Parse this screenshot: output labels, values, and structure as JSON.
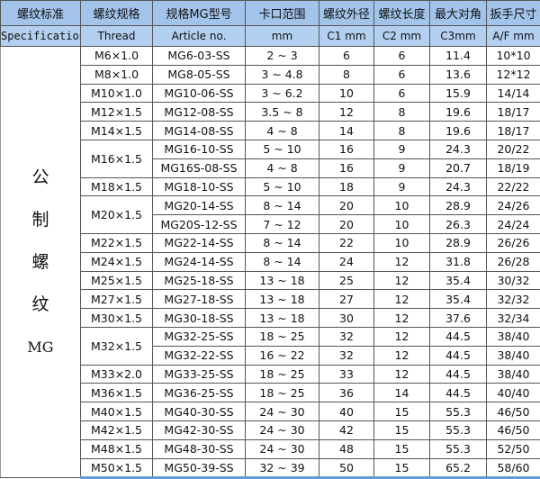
{
  "header": [
    "螺纹标准",
    "螺纹规格",
    "规格MG型号",
    "卡口范围",
    "螺纹外径",
    "螺纹长度",
    "最大对角",
    "扳手尺寸"
  ],
  "subheader": [
    "Specification",
    "Thread",
    "Article no.",
    "mm",
    "C1 mm",
    "C2 mm",
    "C3mm",
    "A/F mm"
  ],
  "standard": [
    "公",
    "制",
    "螺",
    "纹",
    "MG"
  ],
  "colors": {
    "header_bg": "#a3c4ea",
    "subheader_bg": "#b4d0f0"
  },
  "rows": [
    {
      "thread": "M6×1.0",
      "article": "MG6-03-SS",
      "range": "2 ~ 3",
      "c1": "6",
      "c2": "6",
      "c3": "11.4",
      "af": "10*10"
    },
    {
      "thread": "M8×1.0",
      "article": "MG8-05-SS",
      "range": "3 ~ 4.8",
      "c1": "8",
      "c2": "6",
      "c3": "13.6",
      "af": "12*12"
    },
    {
      "thread": "M10×1.0",
      "article": "MG10-06-SS",
      "range": "3 ~ 6.2",
      "c1": "10",
      "c2": "6",
      "c3": "15.9",
      "af": "14/14"
    },
    {
      "thread": "M12×1.5",
      "article": "MG12-08-SS",
      "range": "3.5 ~ 8",
      "c1": "12",
      "c2": "8",
      "c3": "19.6",
      "af": "18/17"
    },
    {
      "thread": "M14×1.5",
      "article": "MG14-08-SS",
      "range": "4 ~ 8",
      "c1": "14",
      "c2": "8",
      "c3": "19.6",
      "af": "18/17"
    },
    {
      "thread": "M16×1.5",
      "span": 2,
      "article": "MG16-10-SS",
      "range": "5 ~ 10",
      "c1": "16",
      "c2": "9",
      "c3": "24.3",
      "af": "20/22"
    },
    {
      "article": "MG16S-08-SS",
      "range": "4 ~ 8",
      "c1": "16",
      "c2": "9",
      "c3": "20.7",
      "af": "18/19"
    },
    {
      "thread": "M18×1.5",
      "article": "MG18-10-SS",
      "range": "5 ~ 10",
      "c1": "18",
      "c2": "9",
      "c3": "24.3",
      "af": "22/22"
    },
    {
      "thread": "M20×1.5",
      "span": 2,
      "article": "MG20-14-SS",
      "range": "8 ~ 14",
      "c1": "20",
      "c2": "10",
      "c3": "28.9",
      "af": "24/26"
    },
    {
      "article": "MG20S-12-SS",
      "range": "7 ~ 12",
      "c1": "20",
      "c2": "10",
      "c3": "26.3",
      "af": "24/24"
    },
    {
      "thread": "M22×1.5",
      "article": "MG22-14-SS",
      "range": "8 ~ 14",
      "c1": "22",
      "c2": "10",
      "c3": "28.9",
      "af": "26/26"
    },
    {
      "thread": "M24×1.5",
      "article": "MG24-14-SS",
      "range": "8 ~ 14",
      "c1": "24",
      "c2": "12",
      "c3": "31.8",
      "af": "26/28"
    },
    {
      "thread": "M25×1.5",
      "article": "MG25-18-SS",
      "range": "13 ~ 18",
      "c1": "25",
      "c2": "12",
      "c3": "35.4",
      "af": "30/32"
    },
    {
      "thread": "M27×1.5",
      "article": "MG27-18-SS",
      "range": "13 ~ 18",
      "c1": "27",
      "c2": "12",
      "c3": "35.4",
      "af": "32/32"
    },
    {
      "thread": "M30×1.5",
      "article": "MG30-18-SS",
      "range": "13 ~ 18",
      "c1": "30",
      "c2": "12",
      "c3": "37.6",
      "af": "32/34"
    },
    {
      "thread": "M32×1.5",
      "span": 2,
      "article": "MG32-25-SS",
      "range": "18 ~ 25",
      "c1": "32",
      "c2": "12",
      "c3": "44.5",
      "af": "38/40"
    },
    {
      "article": "MG32-22-SS",
      "range": "16 ~ 22",
      "c1": "32",
      "c2": "12",
      "c3": "44.5",
      "af": "38/40"
    },
    {
      "thread": "M33×2.0",
      "article": "MG33-25-SS",
      "range": "18 ~ 25",
      "c1": "33",
      "c2": "12",
      "c3": "44.5",
      "af": "38/40"
    },
    {
      "thread": "M36×1.5",
      "article": "MG36-25-SS",
      "range": "18 ~ 25",
      "c1": "36",
      "c2": "14",
      "c3": "44.5",
      "af": "40/40"
    },
    {
      "thread": "M40×1.5",
      "article": "MG40-30-SS",
      "range": "24 ~ 30",
      "c1": "40",
      "c2": "15",
      "c3": "55.3",
      "af": "46/50"
    },
    {
      "thread": "M42×1.5",
      "article": "MG42-30-SS",
      "range": "24 ~ 30",
      "c1": "42",
      "c2": "15",
      "c3": "55.3",
      "af": "46/50"
    },
    {
      "thread": "M48×1.5",
      "article": "MG48-30-SS",
      "range": "24 ~ 30",
      "c1": "48",
      "c2": "15",
      "c3": "55.3",
      "af": "52/50"
    },
    {
      "thread": "M50×1.5",
      "article": "MG50-39-SS",
      "range": "32 ~ 39",
      "c1": "50",
      "c2": "15",
      "c3": "65.2",
      "af": "58/60"
    }
  ]
}
